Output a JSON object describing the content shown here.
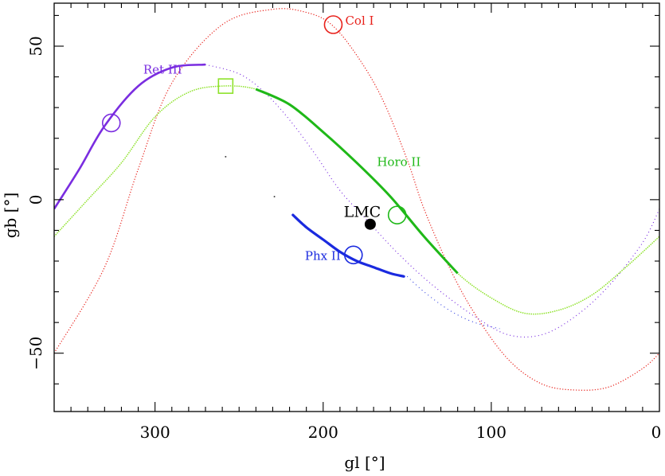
{
  "chart_data": {
    "type": "scatter",
    "title": "",
    "xlabel": "gl [°]",
    "ylabel": "gb [°]",
    "xlim": [
      360,
      0
    ],
    "ylim": [
      -69,
      64
    ],
    "grid": false,
    "x_ticks": [
      300,
      200,
      100,
      0
    ],
    "y_ticks": [
      50,
      0,
      -50
    ],
    "x_tick_labels": [
      "300",
      "200",
      "100",
      "0"
    ],
    "y_tick_labels": [
      "50",
      "0",
      "−50"
    ],
    "series": [
      {
        "name": "Col I",
        "color": "#e8201a",
        "style": "sparse-dots",
        "points": [
          [
            360,
            -50
          ],
          [
            330,
            -22
          ],
          [
            310,
            10
          ],
          [
            290,
            38
          ],
          [
            260,
            57
          ],
          [
            230,
            62
          ],
          [
            210,
            61
          ],
          [
            195,
            57
          ],
          [
            180,
            47
          ],
          [
            165,
            33
          ],
          [
            150,
            13
          ],
          [
            140,
            -3
          ],
          [
            125,
            -22
          ],
          [
            110,
            -37
          ],
          [
            90,
            -52
          ],
          [
            70,
            -60
          ],
          [
            50,
            -62
          ],
          [
            30,
            -61
          ],
          [
            10,
            -55
          ],
          [
            0,
            -50
          ]
        ]
      },
      {
        "name": "Ret III",
        "color": "#7a2de0",
        "style": "thick-then-sparse",
        "points": [
          [
            360,
            -3
          ],
          [
            345,
            10
          ],
          [
            330,
            24
          ],
          [
            310,
            37
          ],
          [
            290,
            43
          ],
          [
            270,
            44
          ],
          [
            250,
            41
          ],
          [
            235,
            35
          ],
          [
            220,
            26
          ],
          [
            205,
            15
          ],
          [
            190,
            3
          ],
          [
            175,
            -6
          ],
          [
            160,
            -15
          ],
          [
            145,
            -23
          ],
          [
            130,
            -30
          ],
          [
            110,
            -38
          ],
          [
            90,
            -44
          ],
          [
            70,
            -44
          ],
          [
            50,
            -38
          ],
          [
            30,
            -28
          ],
          [
            10,
            -14
          ],
          [
            0,
            -3
          ]
        ]
      },
      {
        "name": "Horo II",
        "color": "#1fb818",
        "edge_color": "#8ee22a",
        "style": "thick",
        "points": [
          [
            360,
            -12
          ],
          [
            340,
            0
          ],
          [
            320,
            12
          ],
          [
            300,
            27
          ],
          [
            280,
            35
          ],
          [
            260,
            37
          ],
          [
            240,
            36
          ],
          [
            220,
            31
          ],
          [
            200,
            22
          ],
          [
            180,
            12
          ],
          [
            160,
            1
          ],
          [
            140,
            -12
          ],
          [
            120,
            -24
          ],
          [
            100,
            -32
          ],
          [
            80,
            -37
          ],
          [
            60,
            -36
          ],
          [
            40,
            -31
          ],
          [
            20,
            -22
          ],
          [
            0,
            -12
          ]
        ]
      },
      {
        "name": "Phx II",
        "color": "#1a2adf",
        "style": "thick-short",
        "points": [
          [
            218,
            -5
          ],
          [
            210,
            -9
          ],
          [
            200,
            -13
          ],
          [
            190,
            -17
          ],
          [
            180,
            -20
          ],
          [
            170,
            -22
          ],
          [
            160,
            -24
          ],
          [
            152,
            -25
          ]
        ],
        "trail": [
          [
            150,
            -25
          ],
          [
            140,
            -30
          ],
          [
            125,
            -36
          ],
          [
            110,
            -40
          ],
          [
            95,
            -42
          ]
        ]
      }
    ],
    "stray_points": [
      [
        258,
        14
      ],
      [
        229,
        1
      ]
    ],
    "markers": [
      {
        "name": "LMC",
        "label": "LMC",
        "x": 172,
        "y": -8,
        "shape": "filled-circle",
        "color": "#000000"
      },
      {
        "name": "Col I",
        "label": "Col I",
        "x": 194,
        "y": 57,
        "shape": "open-circle",
        "color": "#e8201a",
        "label_side": "right"
      },
      {
        "name": "Ret III",
        "label": "Ret III",
        "x": 326,
        "y": 25,
        "shape": "open-circle",
        "color": "#7a2de0",
        "label_x": 307,
        "label_y": 41
      },
      {
        "name": "Horo II",
        "label": "Horo II",
        "x": 156,
        "y": -5,
        "shape": "open-circle",
        "color": "#1fb818",
        "label_x": 168,
        "label_y": 11
      },
      {
        "name": "Phx II",
        "label": "Phx II",
        "x": 182,
        "y": -18,
        "shape": "open-circle",
        "color": "#1a2adf",
        "label_side": "left"
      },
      {
        "name": "square-marker",
        "label": "",
        "x": 258,
        "y": 37,
        "shape": "open-square",
        "color": "#8ee22a"
      }
    ]
  }
}
